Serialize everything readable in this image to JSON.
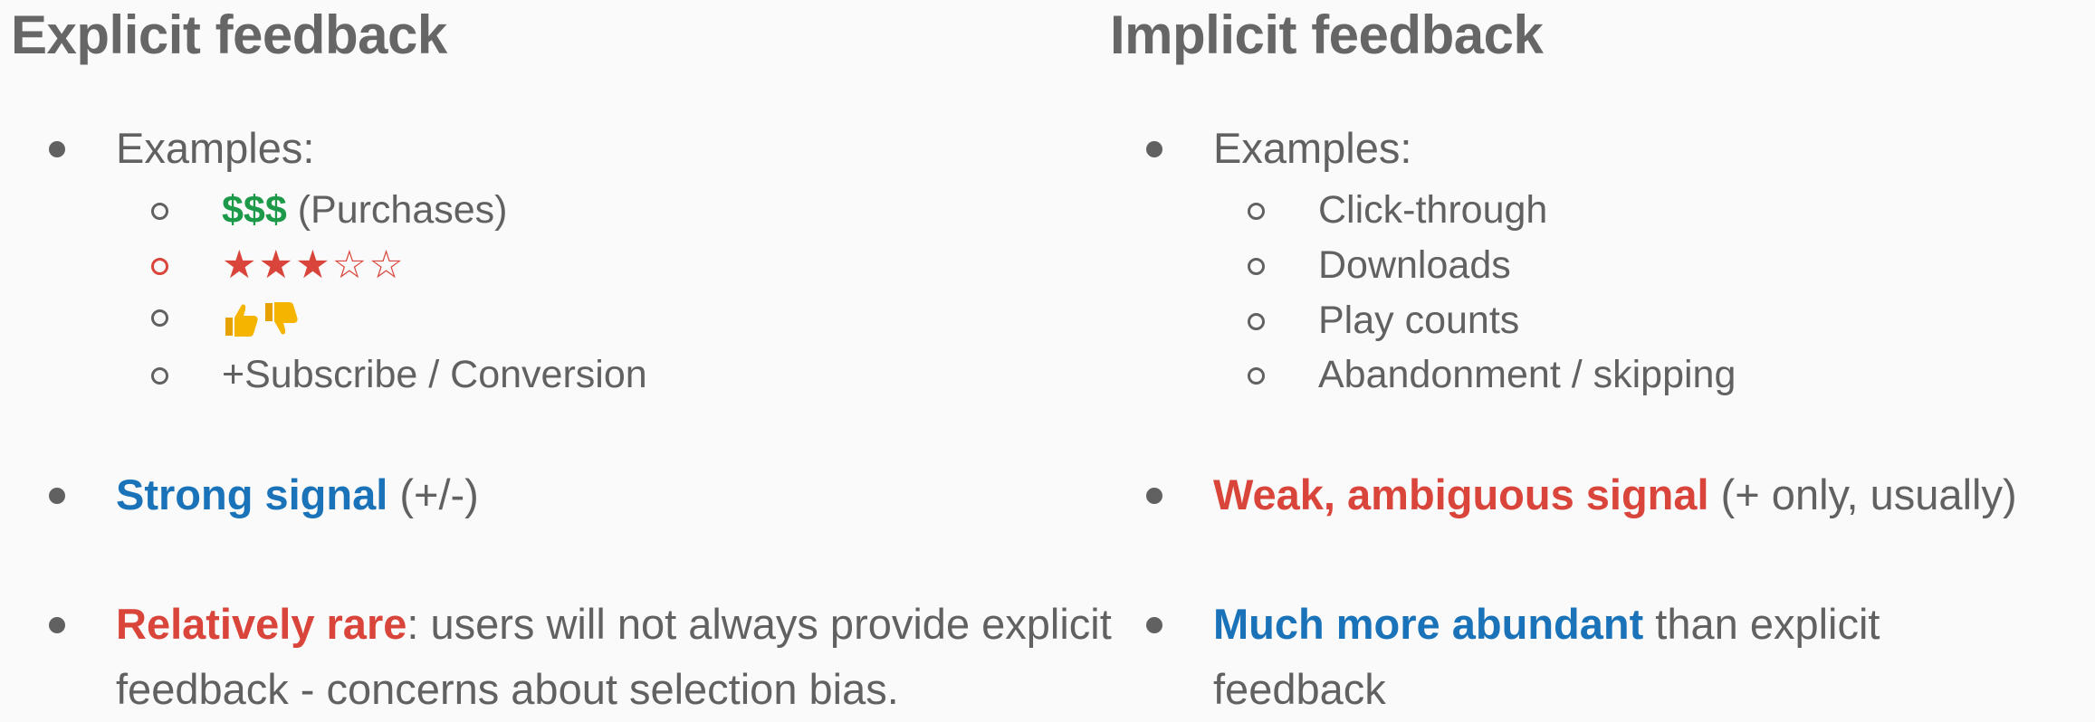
{
  "left": {
    "heading": "Explicit feedback",
    "examples_label": "Examples:",
    "examples": {
      "purchases_symbol": "$$$",
      "purchases_text": " (Purchases)",
      "stars": "★★★☆☆",
      "thumbs": "thumbs up / thumbs down",
      "subscribe": "+Subscribe / Conversion"
    },
    "signal_strong": "Strong signal",
    "signal_strong_rest": " (+/-)",
    "rare_bold": "Relatively rare",
    "rare_rest": ": users will not always provide explicit feedback - concerns about selection bias."
  },
  "right": {
    "heading": "Implicit feedback",
    "examples_label": "Examples:",
    "examples": [
      "Click-through",
      "Downloads",
      "Play counts",
      "Abandonment / skipping"
    ],
    "signal_weak": "Weak, ambiguous signal",
    "signal_weak_rest": " (+ only, usually)",
    "abundant_bold": "Much more abundant",
    "abundant_rest": " than explicit feedback"
  },
  "colors": {
    "text": "#616161",
    "heading": "#666666",
    "green": "#1c9a4a",
    "red": "#d9453a",
    "blue": "#1a73b8",
    "thumb": "#f4b400"
  },
  "icons": [
    "thumbs-up-icon",
    "thumbs-down-icon"
  ]
}
